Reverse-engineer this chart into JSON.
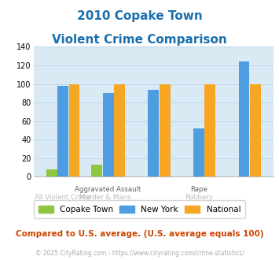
{
  "title_line1": "2010 Copake Town",
  "title_line2": "Violent Crime Comparison",
  "copake_values": [
    8,
    13,
    0,
    0,
    0
  ],
  "ny_values": [
    98,
    90,
    94,
    52,
    124
  ],
  "national_values": [
    100,
    100,
    100,
    100,
    100
  ],
  "label_top": [
    "",
    "Aggravated Assault",
    "",
    "Rape",
    ""
  ],
  "label_bottom": [
    "All Violent Crime",
    "Murder & Mans...",
    "",
    "Robbery",
    ""
  ],
  "copake_color": "#8dc63f",
  "ny_color": "#4d9de0",
  "national_color": "#f5a623",
  "bg_color": "#daeaf5",
  "grid_color": "#c0d8e8",
  "ylim": [
    0,
    140
  ],
  "yticks": [
    0,
    20,
    40,
    60,
    80,
    100,
    120,
    140
  ],
  "footer_text": "Compared to U.S. average. (U.S. average equals 100)",
  "copyright_text": "© 2025 CityRating.com - https://www.cityrating.com/crime-statistics/",
  "title_color": "#1a6fad",
  "footer_color": "#cc4400",
  "copyright_color": "#aaaaaa",
  "label_top_color": "#666666",
  "label_bottom_color": "#bbbbbb"
}
